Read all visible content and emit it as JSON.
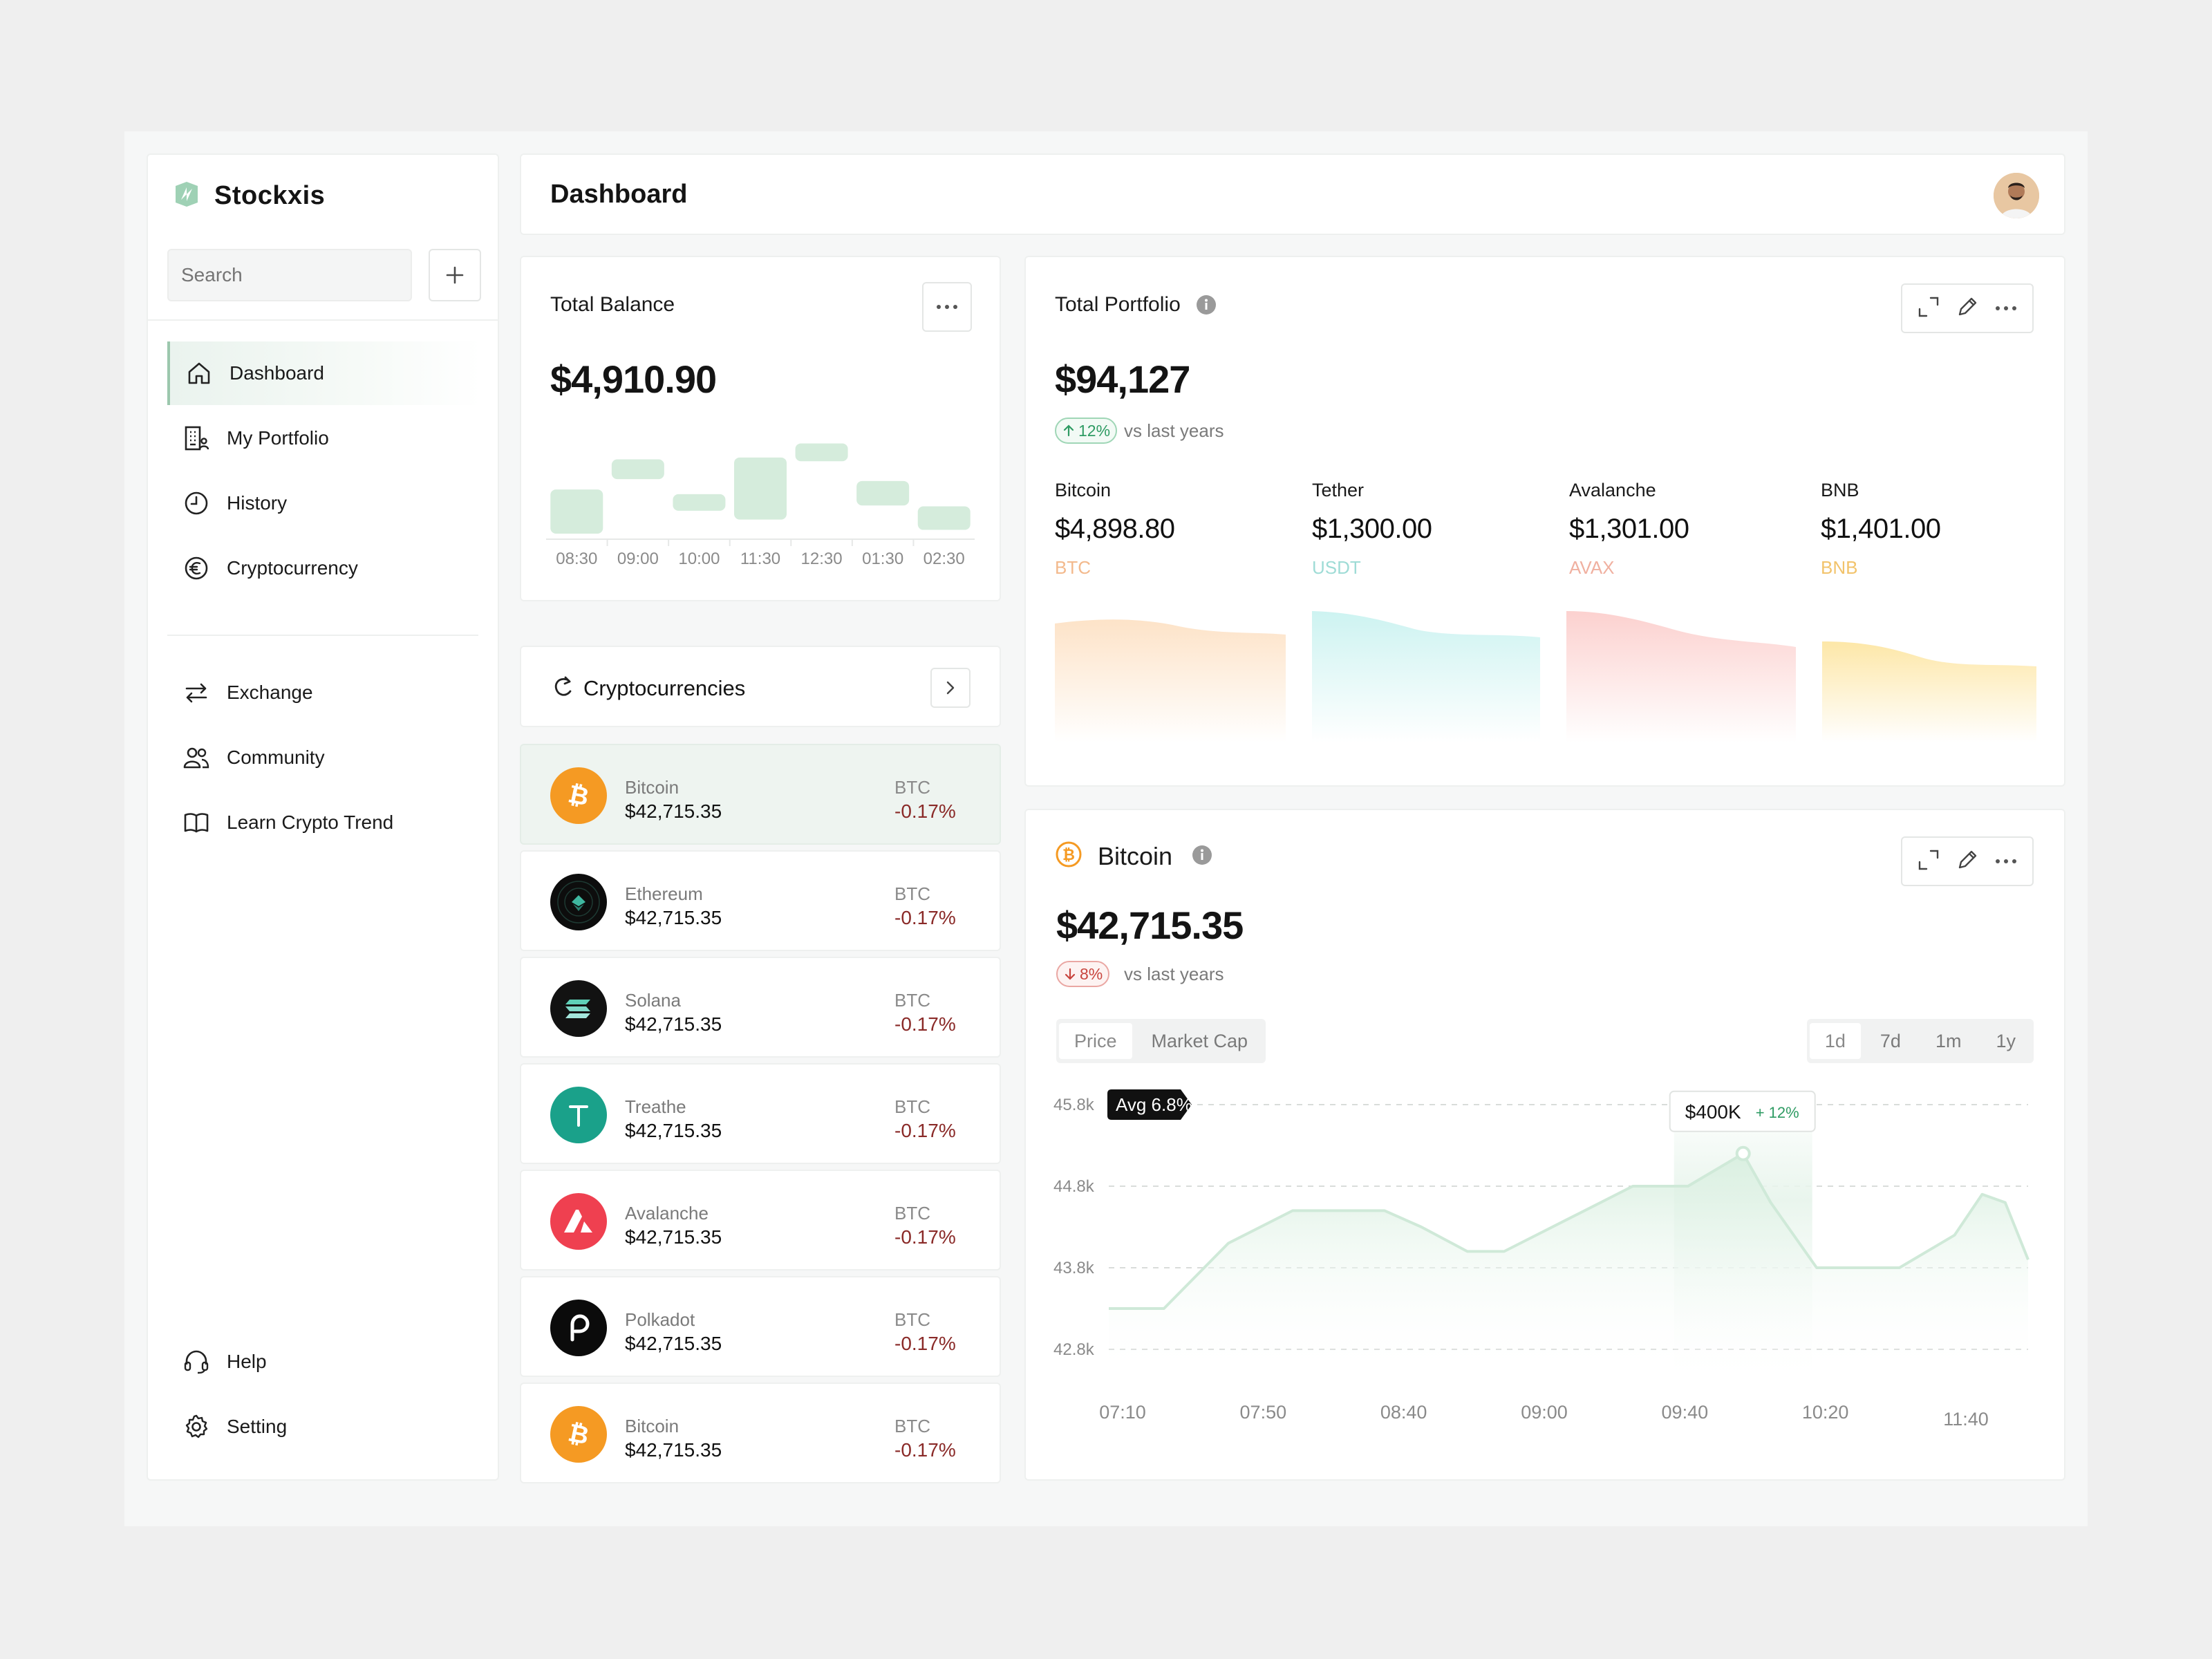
{
  "brand": {
    "name": "Stockxis"
  },
  "search": {
    "placeholder": "Search"
  },
  "nav": {
    "primary": [
      {
        "label": "Dashboard",
        "icon": "home-icon",
        "active": true
      },
      {
        "label": "My Portfolio",
        "icon": "building-icon"
      },
      {
        "label": "History",
        "icon": "clock-icon"
      },
      {
        "label": "Cryptocurrency",
        "icon": "euro-icon"
      }
    ],
    "secondary": [
      {
        "label": "Exchange",
        "icon": "exchange-icon"
      },
      {
        "label": "Community",
        "icon": "users-icon"
      },
      {
        "label": "Learn Crypto Trend",
        "icon": "book-icon"
      }
    ],
    "footer": [
      {
        "label": "Help",
        "icon": "headset-icon"
      },
      {
        "label": "Setting",
        "icon": "gear-icon"
      }
    ]
  },
  "header": {
    "title": "Dashboard"
  },
  "balance": {
    "title": "Total Balance",
    "value": "$4,910.90",
    "chart": {
      "times": [
        "08:30",
        "09:00",
        "10:00",
        "11:30",
        "12:30",
        "01:30",
        "02:30"
      ],
      "bars": [
        {
          "low": 0.0,
          "high": 0.47
        },
        {
          "low": 0.58,
          "high": 0.79
        },
        {
          "low": 0.27,
          "high": 0.42
        },
        {
          "low": 0.15,
          "high": 0.81
        },
        {
          "low": 0.77,
          "high": 0.96
        },
        {
          "low": 0.3,
          "high": 0.56
        },
        {
          "low": 0.04,
          "high": 0.29
        }
      ],
      "color": "#d5ecdc"
    }
  },
  "crypto_list": {
    "title": "Cryptocurrencies",
    "items": [
      {
        "name": "Bitcoin",
        "price": "$42,715.35",
        "ticker": "BTC",
        "change": "-0.17%",
        "logo": "bitcoin-icon",
        "active": true
      },
      {
        "name": "Ethereum",
        "price": "$42,715.35",
        "ticker": "BTC",
        "change": "-0.17%",
        "logo": "ethereum-icon"
      },
      {
        "name": "Solana",
        "price": "$42,715.35",
        "ticker": "BTC",
        "change": "-0.17%",
        "logo": "solana-icon"
      },
      {
        "name": "Treathe",
        "price": "$42,715.35",
        "ticker": "BTC",
        "change": "-0.17%",
        "logo": "tether-icon"
      },
      {
        "name": "Avalanche",
        "price": "$42,715.35",
        "ticker": "BTC",
        "change": "-0.17%",
        "logo": "avalanche-icon"
      },
      {
        "name": "Polkadot",
        "price": "$42,715.35",
        "ticker": "BTC",
        "change": "-0.17%",
        "logo": "polkadot-icon"
      },
      {
        "name": "Bitcoin",
        "price": "$42,715.35",
        "ticker": "BTC",
        "change": "-0.17%",
        "logo": "bitcoin-icon"
      }
    ]
  },
  "portfolio": {
    "title": "Total Portfolio",
    "value": "$94,127",
    "change": "12%",
    "vs": "vs last years",
    "assets": [
      {
        "name": "Bitcoin",
        "value": "$4,898.80",
        "ticker": "BTC",
        "color": "#f3b98c"
      },
      {
        "name": "Tether",
        "value": "$1,300.00",
        "ticker": "USDT",
        "color": "#9fdcd6"
      },
      {
        "name": "Avalanche",
        "value": "$1,301.00",
        "ticker": "AVAX",
        "color": "#f0b0a0"
      },
      {
        "name": "BNB",
        "value": "$1,401.00",
        "ticker": "BNB",
        "color": "#f2c36b"
      }
    ],
    "area_colors": [
      "#fde3c8",
      "#cdf3f1",
      "#fcd1cf",
      "#fde7a8"
    ]
  },
  "bitcoin": {
    "title": "Bitcoin",
    "value": "$42,715.35",
    "change": "8%",
    "vs": "vs last years",
    "tabs": [
      "Price",
      "Market Cap"
    ],
    "ranges": [
      "1d",
      "7d",
      "1m",
      "1y"
    ],
    "avg_label": "Avg 6.8%",
    "tooltip": {
      "value": "$400K",
      "delta": "+ 12%"
    },
    "chart_data": {
      "type": "area",
      "x": [
        "07:10",
        "07:50",
        "08:40",
        "09:00",
        "09:40",
        "10:20",
        "11:40"
      ],
      "y_ticks": [
        "45.8k",
        "44.8k",
        "43.8k",
        "42.8k"
      ],
      "ylim": [
        42.8,
        45.8
      ],
      "avg": 45.8,
      "points": [
        [
          0.0,
          43.3
        ],
        [
          0.06,
          43.3
        ],
        [
          0.13,
          44.1
        ],
        [
          0.2,
          44.5
        ],
        [
          0.3,
          44.5
        ],
        [
          0.34,
          44.3
        ],
        [
          0.39,
          44.0
        ],
        [
          0.43,
          44.0
        ],
        [
          0.5,
          44.4
        ],
        [
          0.57,
          44.8
        ],
        [
          0.63,
          44.8
        ],
        [
          0.69,
          45.2
        ],
        [
          0.72,
          44.6
        ],
        [
          0.77,
          43.8
        ],
        [
          0.86,
          43.8
        ],
        [
          0.92,
          44.2
        ],
        [
          0.95,
          44.7
        ],
        [
          0.975,
          44.6
        ],
        [
          1.0,
          43.9
        ]
      ],
      "peak_index": 11,
      "color": "#cfe9d8"
    }
  }
}
